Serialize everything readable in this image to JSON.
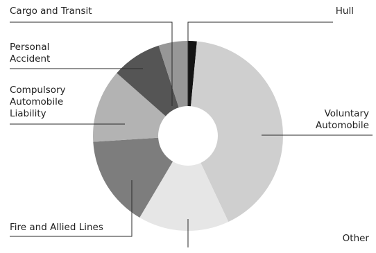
{
  "chart_data": {
    "type": "pie",
    "variant": "donut",
    "title": "",
    "start": "top",
    "direction": "clockwise",
    "slices": [
      {
        "name": "Hull",
        "value": 1.5,
        "color": "#141414"
      },
      {
        "name": "Voluntary\nAutomobile",
        "value": 41.5,
        "color": "#cfcfcf"
      },
      {
        "name": "Other",
        "value": 15.5,
        "color": "#e6e6e6"
      },
      {
        "name": "Fire and Allied Lines",
        "value": 15.5,
        "color": "#7d7d7d"
      },
      {
        "name": "Compulsory\nAutomobile\nLiability",
        "value": 12.5,
        "color": "#b3b3b3"
      },
      {
        "name": "Personal\nAccident",
        "value": 8.5,
        "color": "#555555"
      },
      {
        "name": "Cargo and Transit",
        "value": 5.0,
        "color": "#979797"
      }
    ]
  }
}
